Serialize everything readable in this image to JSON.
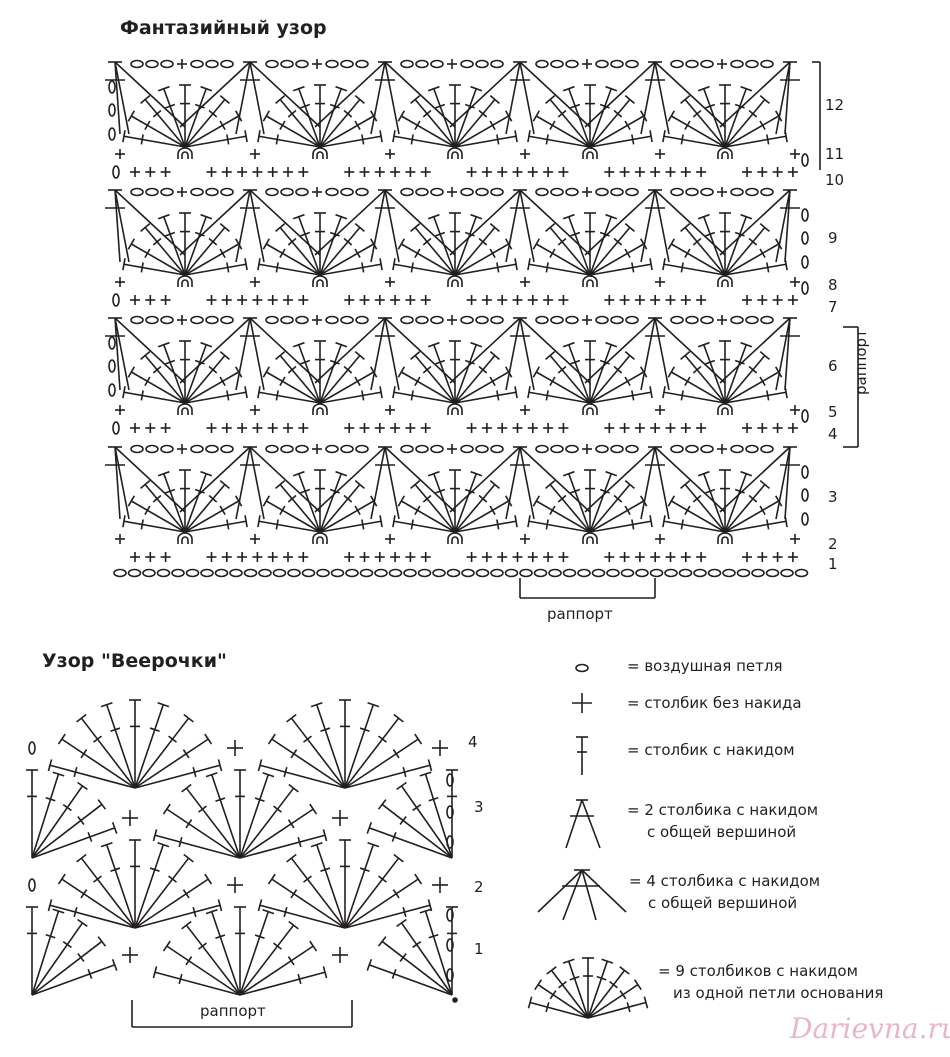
{
  "top_chart": {
    "title": "Фантазийный узор",
    "row_numbers": [
      "12",
      "11",
      "10",
      "9",
      "8",
      "7",
      "6",
      "5",
      "4",
      "3",
      "2",
      "1"
    ],
    "rapport_vertical": "раппорт",
    "rapport_horizontal": "раппорт"
  },
  "bottom_chart": {
    "title": "Узор \"Веерочки\"",
    "row_numbers": [
      "4",
      "3",
      "2",
      "1"
    ],
    "rapport": "раппорт"
  },
  "legend": [
    {
      "icon": "chain-stitch-icon",
      "text": "= воздушная петля"
    },
    {
      "icon": "single-crochet-icon",
      "text": "= столбик без накида"
    },
    {
      "icon": "double-crochet-icon",
      "text": "= столбик с накидом"
    },
    {
      "icon": "two-dc-cluster-icon",
      "text": "= 2 столбика с накидом",
      "text2": "с общей вершиной"
    },
    {
      "icon": "four-dc-cluster-icon",
      "text": "= 4 столбика с накидом",
      "text2": "с общей вершиной"
    },
    {
      "icon": "nine-dc-fan-icon",
      "text": "= 9 столбиков с накидом",
      "text2": "из одной петли основания"
    }
  ],
  "watermark": "Darievna.ru",
  "colors": {
    "ink": "#231f20",
    "watermark": "#e8b7c3"
  }
}
